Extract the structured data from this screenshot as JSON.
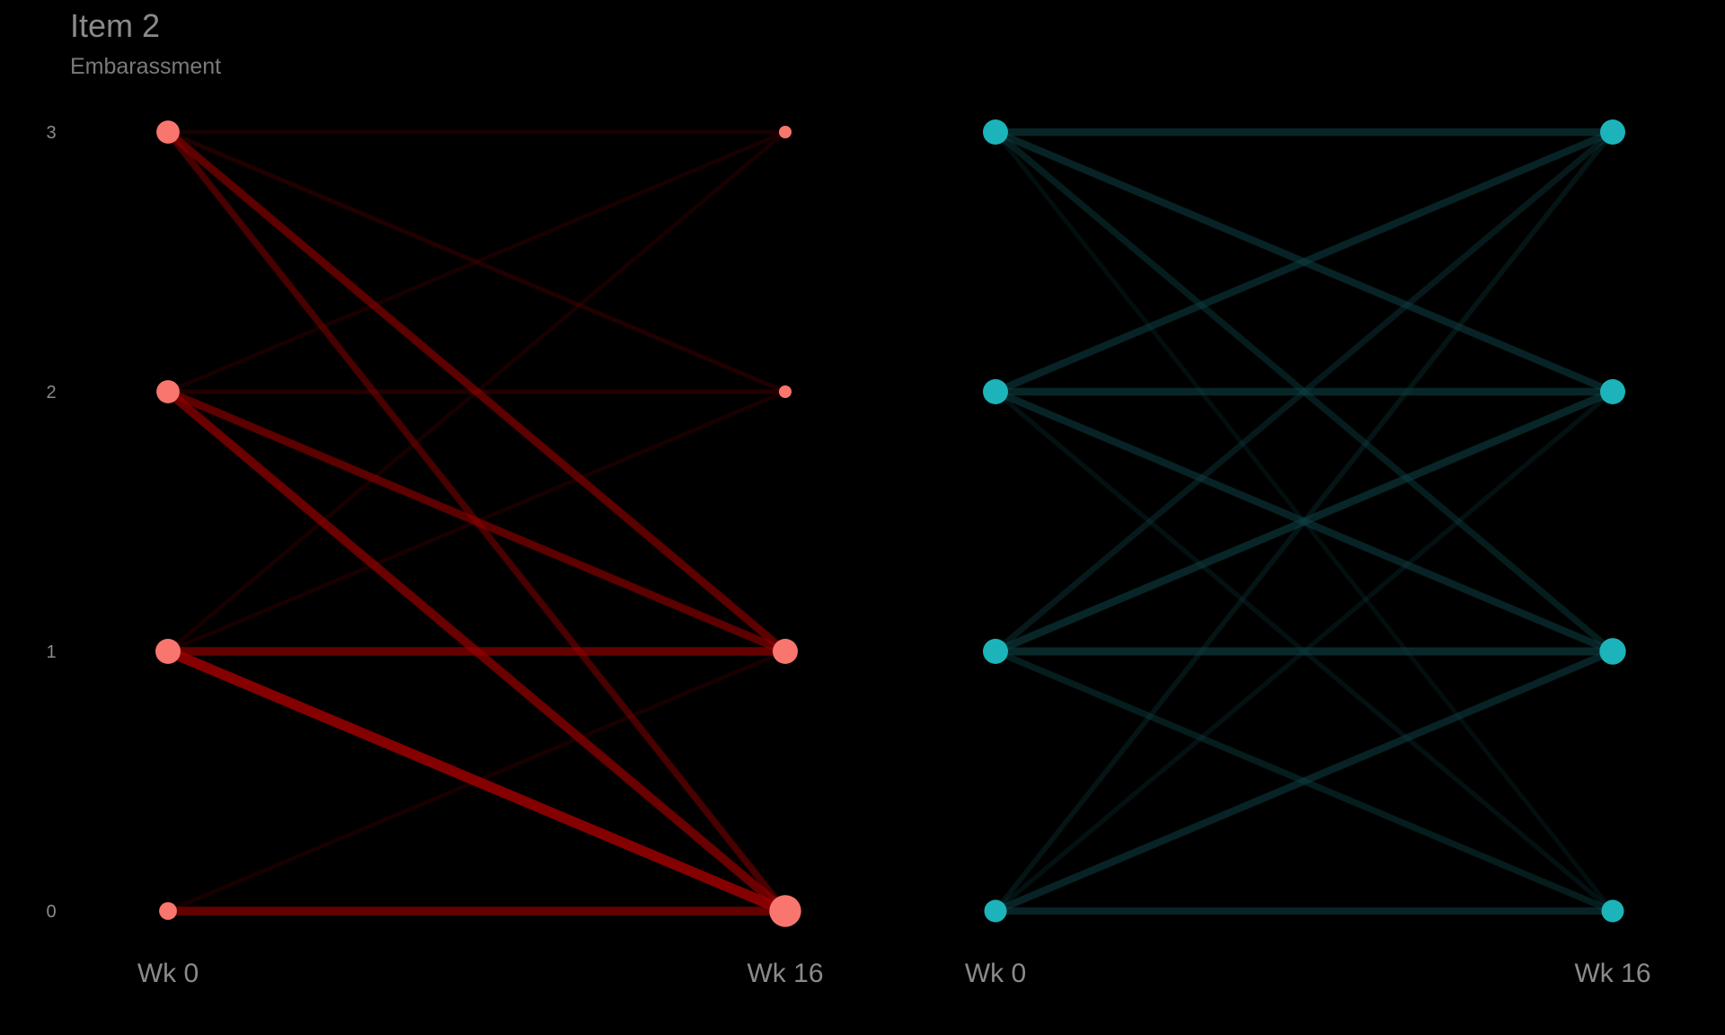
{
  "chart_data": {
    "type": "slope",
    "title": "Item 2",
    "subtitle": "Embarassment",
    "y_ticks": [
      0,
      1,
      2,
      3
    ],
    "ylim": [
      0,
      3
    ],
    "grid": false,
    "legend": "none",
    "panels": [
      {
        "x_labels": [
          "Wk 0",
          "Wk 16"
        ],
        "color": "#F8766D",
        "line_color": "#990000",
        "point_weights": {
          "start": {
            "0": 0.5,
            "1": 1,
            "2": 0.85,
            "3": 0.85
          },
          "end": {
            "0": 1.6,
            "1": 1,
            "2": 0.25,
            "3": 0.25
          }
        },
        "transitions": [
          {
            "from": 3,
            "to": 3,
            "weight": 0.06
          },
          {
            "from": 3,
            "to": 2,
            "weight": 0.1
          },
          {
            "from": 3,
            "to": 1,
            "weight": 0.55
          },
          {
            "from": 3,
            "to": 0,
            "weight": 0.4
          },
          {
            "from": 2,
            "to": 3,
            "weight": 0.05
          },
          {
            "from": 2,
            "to": 2,
            "weight": 0.12
          },
          {
            "from": 2,
            "to": 1,
            "weight": 0.55
          },
          {
            "from": 2,
            "to": 0,
            "weight": 0.65
          },
          {
            "from": 1,
            "to": 3,
            "weight": 0.05
          },
          {
            "from": 1,
            "to": 2,
            "weight": 0.05
          },
          {
            "from": 1,
            "to": 1,
            "weight": 0.6
          },
          {
            "from": 1,
            "to": 0,
            "weight": 0.85
          },
          {
            "from": 0,
            "to": 1,
            "weight": 0.05
          },
          {
            "from": 0,
            "to": 0,
            "weight": 0.6
          }
        ]
      },
      {
        "x_labels": [
          "Wk 0",
          "Wk 16"
        ],
        "color": "#1CB3BA",
        "line_color": "#0F4346",
        "point_weights": {
          "start": {
            "0": 0.8,
            "1": 1,
            "2": 1,
            "3": 1
          },
          "end": {
            "0": 0.8,
            "1": 1.1,
            "2": 1,
            "3": 1
          }
        },
        "transitions": [
          {
            "from": 3,
            "to": 3,
            "weight": 0.5
          },
          {
            "from": 3,
            "to": 2,
            "weight": 0.45
          },
          {
            "from": 3,
            "to": 1,
            "weight": 0.35
          },
          {
            "from": 3,
            "to": 0,
            "weight": 0.1
          },
          {
            "from": 2,
            "to": 3,
            "weight": 0.45
          },
          {
            "from": 2,
            "to": 2,
            "weight": 0.5
          },
          {
            "from": 2,
            "to": 1,
            "weight": 0.45
          },
          {
            "from": 2,
            "to": 0,
            "weight": 0.15
          },
          {
            "from": 1,
            "to": 3,
            "weight": 0.3
          },
          {
            "from": 1,
            "to": 2,
            "weight": 0.5
          },
          {
            "from": 1,
            "to": 1,
            "weight": 0.55
          },
          {
            "from": 1,
            "to": 0,
            "weight": 0.35
          },
          {
            "from": 0,
            "to": 3,
            "weight": 0.2
          },
          {
            "from": 0,
            "to": 2,
            "weight": 0.15
          },
          {
            "from": 0,
            "to": 1,
            "weight": 0.45
          },
          {
            "from": 0,
            "to": 0,
            "weight": 0.45
          }
        ]
      }
    ]
  }
}
